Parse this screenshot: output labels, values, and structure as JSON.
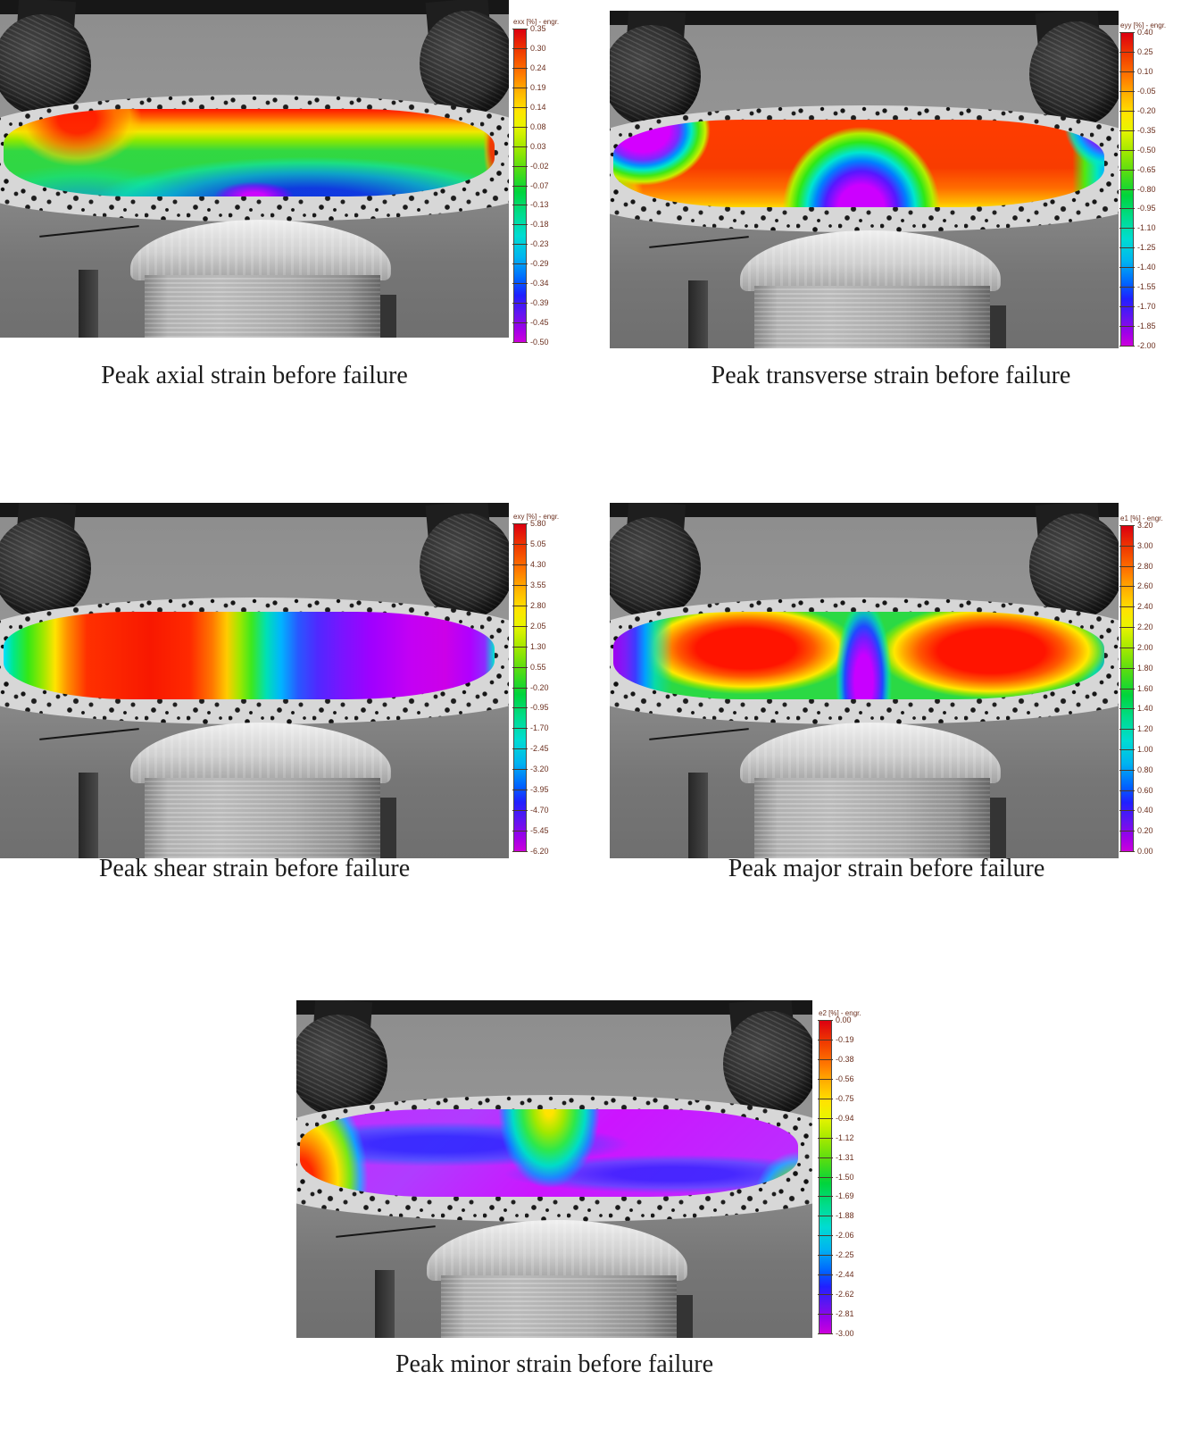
{
  "panels": [
    {
      "id": "axial",
      "caption": "Peak axial strain before failure",
      "legend_title": "exx [%] - engr.",
      "unit": "%",
      "scale_max": 0.35,
      "scale_min": -0.5,
      "ticks": [
        "0.35",
        "0.30",
        "0.24",
        "0.19",
        "0.14",
        "0.08",
        "0.03",
        "-0.02",
        "-0.07",
        "-0.13",
        "-0.18",
        "-0.23",
        "-0.29",
        "-0.34",
        "-0.39",
        "-0.45",
        "-0.50"
      ]
    },
    {
      "id": "transverse",
      "caption": "Peak transverse strain before failure",
      "legend_title": "eyy [%] - engr.",
      "unit": "%",
      "scale_max": 0.4,
      "scale_min": -2.0,
      "ticks": [
        "0.40",
        "0.25",
        "0.10",
        "-0.05",
        "-0.20",
        "-0.35",
        "-0.50",
        "-0.65",
        "-0.80",
        "-0.95",
        "-1.10",
        "-1.25",
        "-1.40",
        "-1.55",
        "-1.70",
        "-1.85",
        "-2.00"
      ]
    },
    {
      "id": "shear",
      "caption": "Peak shear strain before failure",
      "legend_title": "exy [%] - engr.",
      "unit": "%",
      "scale_max": 5.8,
      "scale_min": -6.2,
      "ticks": [
        "5.80",
        "5.05",
        "4.30",
        "3.55",
        "2.80",
        "2.05",
        "1.30",
        "0.55",
        "-0.20",
        "-0.95",
        "-1.70",
        "-2.45",
        "-3.20",
        "-3.95",
        "-4.70",
        "-5.45",
        "-6.20"
      ]
    },
    {
      "id": "major",
      "caption": "Peak major strain before failure",
      "legend_title": "e1 [%] - engr.",
      "unit": "%",
      "scale_max": 3.2,
      "scale_min": 0.0,
      "ticks": [
        "3.20",
        "3.00",
        "2.80",
        "2.60",
        "2.40",
        "2.20",
        "2.00",
        "1.80",
        "1.60",
        "1.40",
        "1.20",
        "1.00",
        "0.80",
        "0.60",
        "0.40",
        "0.20",
        "0.00"
      ]
    },
    {
      "id": "minor",
      "caption": "Peak minor strain before failure",
      "legend_title": "e2 [%] - engr.",
      "unit": "%",
      "scale_max": 0.0,
      "scale_min": -3.0,
      "ticks": [
        "0.00",
        "-0.19",
        "-0.38",
        "-0.56",
        "-0.75",
        "-0.94",
        "-1.12",
        "-1.31",
        "-1.50",
        "-1.69",
        "-1.88",
        "-2.06",
        "-2.25",
        "-2.44",
        "-2.62",
        "-2.81",
        "-3.00"
      ]
    }
  ],
  "colorbar_colors_top_to_bottom": [
    "#dc0010",
    "#ff7800",
    "#ffe400",
    "#a0e800",
    "#00d43c",
    "#00dcd2",
    "#00b4f0",
    "#0064ff",
    "#2020ff",
    "#6414f0",
    "#cc00dc"
  ],
  "chart_data": [
    {
      "type": "heatmap",
      "title": "Peak axial strain before failure",
      "legend": "exx [%] - engr.",
      "range": [
        -0.5,
        0.35
      ]
    },
    {
      "type": "heatmap",
      "title": "Peak transverse strain before failure",
      "legend": "eyy [%] - engr.",
      "range": [
        -2.0,
        0.4
      ]
    },
    {
      "type": "heatmap",
      "title": "Peak shear strain before failure",
      "legend": "exy [%] - engr.",
      "range": [
        -6.2,
        5.8
      ]
    },
    {
      "type": "heatmap",
      "title": "Peak major strain before failure",
      "legend": "e1 [%] - engr.",
      "range": [
        0.0,
        3.2
      ]
    },
    {
      "type": "heatmap",
      "title": "Peak minor strain before failure",
      "legend": "e2 [%] - engr.",
      "range": [
        -3.0,
        0.0
      ]
    }
  ]
}
